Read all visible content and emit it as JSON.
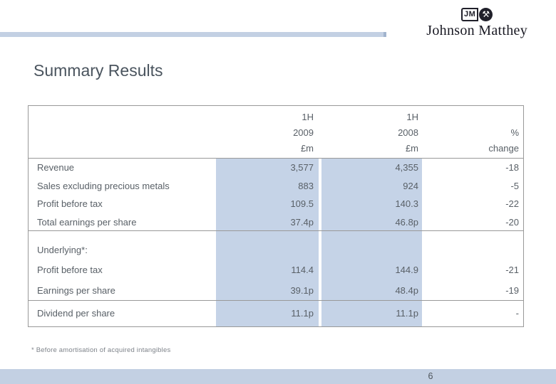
{
  "logo": {
    "jm_monogram": "JM",
    "hammers_glyph": "⚒",
    "wordmark": "Johnson Matthey"
  },
  "title": "Summary Results",
  "table": {
    "header": {
      "col_2009": [
        "1H",
        "2009",
        "£m"
      ],
      "col_2008": [
        "1H",
        "2008",
        "£m"
      ],
      "col_change": [
        "",
        "%",
        "change"
      ]
    },
    "rows": [
      {
        "label": "Revenue",
        "v2009": "3,577",
        "v2008": "4,355",
        "change": "-18"
      },
      {
        "label": "Sales excluding precious metals",
        "v2009": "883",
        "v2008": "924",
        "change": "-5"
      },
      {
        "label": "Profit before tax",
        "v2009": "109.5",
        "v2008": "140.3",
        "change": "-22"
      },
      {
        "label": "Total earnings per share",
        "v2009": "37.4p",
        "v2008": "46.8p",
        "change": "-20",
        "divider_after": true
      },
      {
        "label": "Underlying*:",
        "v2009": "",
        "v2008": "",
        "change": "",
        "section": true
      },
      {
        "label": "Profit before tax",
        "v2009": "114.4",
        "v2008": "144.9",
        "change": "-21"
      },
      {
        "label": "Earnings per share",
        "v2009": "39.1p",
        "v2008": "48.4p",
        "change": "-19",
        "divider_after": true
      },
      {
        "label": "Dividend per share",
        "v2009": "11.1p",
        "v2008": "11.1p",
        "change": "-"
      }
    ]
  },
  "footnote": "* Before amortisation of acquired intangibles",
  "page_number": "6",
  "colors": {
    "accent_blue": "#c5d3e7",
    "bar_blue": "#c3d0e3",
    "table_border": "#999999",
    "title_text": "#4a545e",
    "body_text": "#596067"
  }
}
